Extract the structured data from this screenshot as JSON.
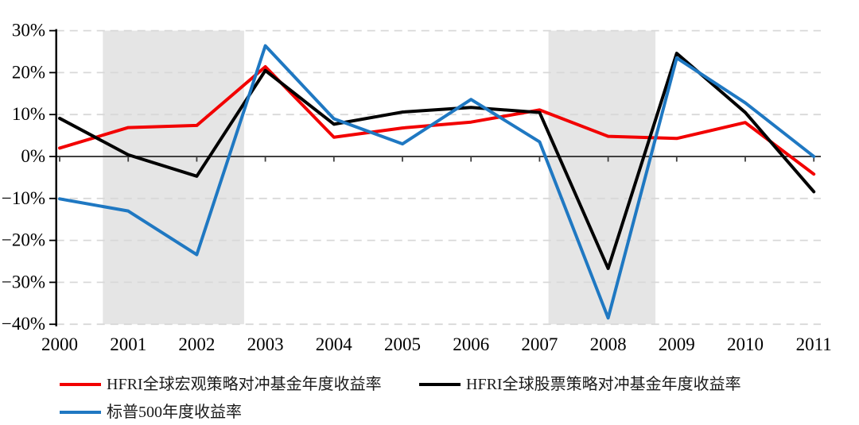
{
  "chart_data": {
    "type": "line",
    "title": "",
    "xlabel": "",
    "ylabel": "",
    "x": [
      2000,
      2001,
      2002,
      2003,
      2004,
      2005,
      2006,
      2007,
      2008,
      2009,
      2010,
      2011
    ],
    "ylim": [
      -40,
      30
    ],
    "ytick_step": 10,
    "ytick_labels": [
      "30%",
      "20%",
      "10%",
      "0%",
      "−10%",
      "−20%",
      "−30%",
      "−40%"
    ],
    "grid": "horizontal-dashed",
    "legend_position": "bottom",
    "series": [
      {
        "name": "HFRI全球宏观策略对冲基金年度收益率",
        "color": "#f20000",
        "values": [
          2.0,
          6.9,
          7.4,
          21.4,
          4.6,
          6.8,
          8.2,
          11.1,
          4.8,
          4.3,
          8.1,
          -4.2
        ]
      },
      {
        "name": "HFRI全球股票策略对冲基金年度收益率",
        "color": "#000000",
        "values": [
          9.1,
          0.4,
          -4.7,
          20.5,
          7.7,
          10.6,
          11.7,
          10.5,
          -26.7,
          24.6,
          10.5,
          -8.4
        ]
      },
      {
        "name": "标普500年度收益率",
        "color": "#1f78c2",
        "values": [
          -10.1,
          -13.0,
          -23.4,
          26.4,
          9.0,
          3.0,
          13.6,
          3.5,
          -38.5,
          23.5,
          12.8,
          0.0
        ]
      }
    ],
    "shaded_regions": [
      {
        "from": 2000.63,
        "to": 2002.69
      },
      {
        "from": 2007.13,
        "to": 2008.69
      }
    ],
    "shaded_color": "#e5e5e5",
    "gridline_color": "#d8d8d8",
    "axis_color": "#000000",
    "zero_line_color": "#404040"
  }
}
